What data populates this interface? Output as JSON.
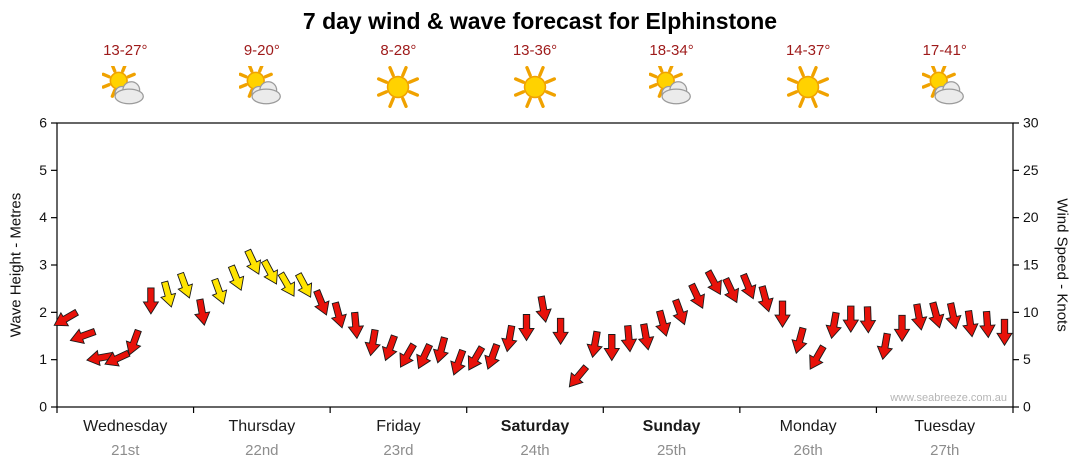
{
  "title": "7 day wind & wave forecast for Elphinstone",
  "watermark": "www.seabreeze.com.au",
  "colors": {
    "arrow_red": "#e8120a",
    "arrow_yellow": "#ffe400",
    "arrow_outline": "#1a1a1a",
    "temp_text": "#9e1a1a",
    "date_text": "#8d8d8d",
    "day_text": "#1a1a1a",
    "axis_line": "#000000",
    "watermark_text": "#b5b5b5"
  },
  "axes": {
    "left_label": "Wave Height - Metres",
    "right_label": "Wind Speed - Knots",
    "left_ticks": [
      0,
      1,
      2,
      3,
      4,
      5,
      6
    ],
    "right_ticks": [
      0,
      5,
      10,
      15,
      20,
      25,
      30
    ]
  },
  "days": [
    {
      "name": "Wednesday",
      "date": "21st",
      "temp": "13-27°",
      "icon": "sun-cloud",
      "bold": false
    },
    {
      "name": "Thursday",
      "date": "22nd",
      "temp": "9-20°",
      "icon": "sun-cloud",
      "bold": false
    },
    {
      "name": "Friday",
      "date": "23rd",
      "temp": "8-28°",
      "icon": "sun",
      "bold": false
    },
    {
      "name": "Saturday",
      "date": "24th",
      "temp": "13-36°",
      "icon": "sun",
      "bold": true
    },
    {
      "name": "Sunday",
      "date": "25th",
      "temp": "18-34°",
      "icon": "sun-cloud",
      "bold": true
    },
    {
      "name": "Monday",
      "date": "26th",
      "temp": "14-37°",
      "icon": "sun",
      "bold": false
    },
    {
      "name": "Tuesday",
      "date": "27th",
      "temp": "17-41°",
      "icon": "sun-cloud",
      "bold": false
    }
  ],
  "chart_data": {
    "type": "wind-arrow-series",
    "title": "7 day wind & wave forecast for Elphinstone",
    "categories": [
      "Wednesday 21st",
      "Thursday 22nd",
      "Friday 23rd",
      "Saturday 24th",
      "Sunday 25th",
      "Monday 26th",
      "Tuesday 27th"
    ],
    "ylabel_left": "Wave Height - Metres",
    "ylabel_right": "Wind Speed - Knots",
    "ylim_metres": [
      0,
      6
    ],
    "ylim_knots": [
      0,
      30
    ],
    "grid": false,
    "points_per_day": 8,
    "wind_knots": [
      9,
      7.5,
      5.5,
      5,
      7,
      11,
      12,
      12.5,
      10,
      12.5,
      13.5,
      15.5,
      14,
      13,
      12.5,
      11,
      10,
      8.5,
      7,
      6,
      5.5,
      5,
      6,
      5,
      5,
      5.5,
      7,
      8.5,
      10,
      8,
      3.5,
      6.5,
      6.5,
      7,
      7.5,
      8.5,
      10,
      12,
      13,
      12.5,
      12.5,
      11.5,
      9.5,
      7,
      5.5,
      8.5,
      9.5,
      9,
      6.5,
      8,
      9.5,
      10,
      9.5,
      9,
      8.5,
      8
    ],
    "wind_dir_deg": [
      150,
      160,
      170,
      155,
      110,
      90,
      75,
      70,
      80,
      70,
      68,
      65,
      62,
      60,
      62,
      68,
      75,
      85,
      100,
      110,
      120,
      115,
      105,
      110,
      120,
      110,
      100,
      90,
      80,
      90,
      130,
      100,
      90,
      85,
      80,
      75,
      70,
      65,
      62,
      65,
      68,
      75,
      90,
      105,
      120,
      100,
      90,
      88,
      100,
      90,
      80,
      75,
      78,
      82,
      86,
      90
    ],
    "arrow_colors": [
      "r",
      "r",
      "r",
      "r",
      "r",
      "r",
      "y",
      "y",
      "r",
      "y",
      "y",
      "y",
      "y",
      "y",
      "y",
      "r",
      "r",
      "r",
      "r",
      "r",
      "r",
      "r",
      "r",
      "r",
      "r",
      "r",
      "r",
      "r",
      "r",
      "r",
      "r",
      "r",
      "r",
      "r",
      "r",
      "r",
      "r",
      "r",
      "r",
      "r",
      "r",
      "r",
      "r",
      "r",
      "r",
      "r",
      "r",
      "r",
      "r",
      "r",
      "r",
      "r",
      "r",
      "r",
      "r",
      "r"
    ]
  }
}
